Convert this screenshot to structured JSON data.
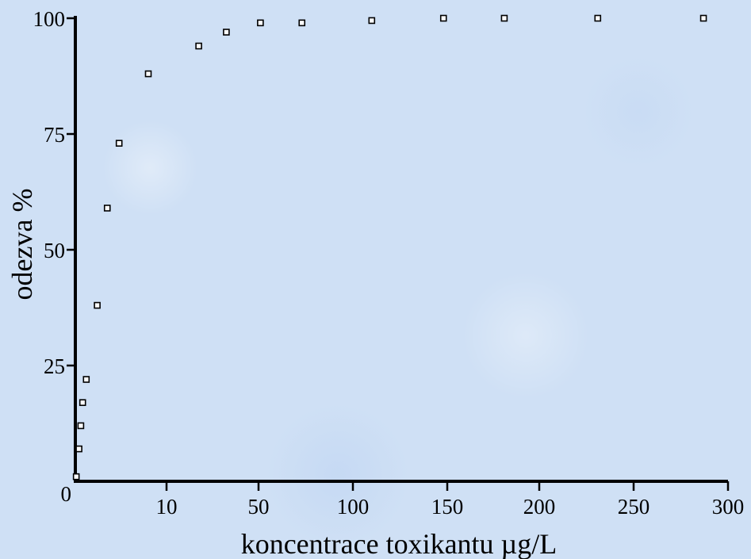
{
  "chart_data": {
    "type": "scatter",
    "xlabel": "koncentrace toxikantu µg/L",
    "ylabel": "odezva %",
    "ylim": [
      0,
      100
    ],
    "x_ticks": [
      "0",
      "10",
      "50",
      "100",
      "150",
      "200",
      "250",
      "300"
    ],
    "y_ticks": [
      "0",
      "25",
      "50",
      "75",
      "100"
    ],
    "grid": false,
    "marker": "open-square",
    "points": [
      {
        "x_pos": 0.1,
        "y": 1
      },
      {
        "x_pos": 0.4,
        "y": 7
      },
      {
        "x_pos": 0.6,
        "y": 12
      },
      {
        "x_pos": 0.8,
        "y": 17
      },
      {
        "x_pos": 1.2,
        "y": 22
      },
      {
        "x_pos": 2.4,
        "y": 38
      },
      {
        "x_pos": 3.5,
        "y": 59
      },
      {
        "x_pos": 4.8,
        "y": 73
      },
      {
        "x_pos": 8.0,
        "y": 88
      },
      {
        "x_pos": 24,
        "y": 94
      },
      {
        "x_pos": 36,
        "y": 97
      },
      {
        "x_pos": 51,
        "y": 99
      },
      {
        "x_pos": 73,
        "y": 99
      },
      {
        "x_pos": 110,
        "y": 99.5
      },
      {
        "x_pos": 148,
        "y": 100
      },
      {
        "x_pos": 181,
        "y": 100
      },
      {
        "x_pos": 231,
        "y": 100
      },
      {
        "x_pos": 287,
        "y": 100
      }
    ]
  }
}
